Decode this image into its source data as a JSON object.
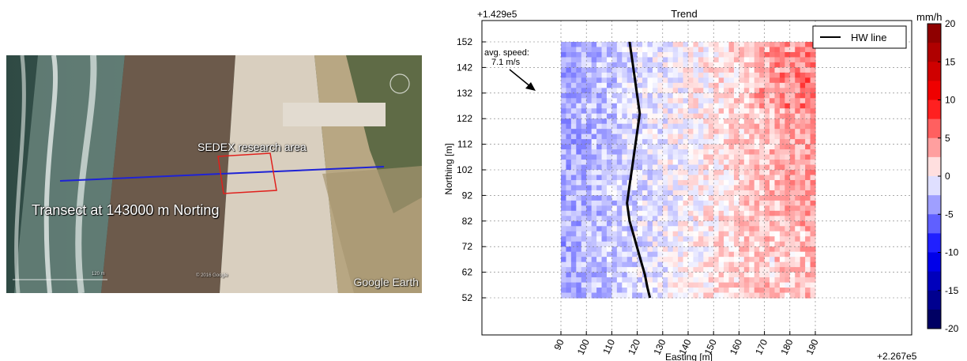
{
  "photo": {
    "area_label": "SEDEX research area",
    "transect_label": "Transect at 143000 m Norting",
    "watermark": "Google Earth",
    "scale_label": "120 m",
    "imagery_credit": "© 2016 Google",
    "colors": {
      "transect_line": "#1e22d6",
      "research_box": "#e0201c"
    }
  },
  "chart_data": {
    "type": "heatmap",
    "title": "Trend",
    "xlabel": "Easting [m]",
    "ylabel": "Northing [m]",
    "x_offset_label": "+2.267e5",
    "y_offset_label": "+1.429e5",
    "x_ticks": [
      90,
      100,
      110,
      120,
      130,
      140,
      150,
      160,
      170,
      180,
      190
    ],
    "y_ticks": [
      52,
      62,
      72,
      82,
      92,
      102,
      112,
      122,
      132,
      142,
      152
    ],
    "xlim": [
      90,
      190
    ],
    "ylim": [
      52,
      152
    ],
    "data_extent_x": [
      90,
      190
    ],
    "data_extent_y": [
      52,
      152
    ],
    "grid": true,
    "legend": {
      "placement": "top-right",
      "entries": [
        {
          "name": "HW line",
          "color": "#000000"
        }
      ]
    },
    "hw_line": {
      "x": [
        117,
        118,
        119,
        120,
        121,
        120,
        119,
        118,
        117,
        116,
        117,
        119,
        121,
        123,
        124,
        125
      ],
      "y": [
        152,
        145,
        138,
        131,
        124,
        117,
        110,
        103,
        96,
        89,
        82,
        75,
        68,
        61,
        56,
        52
      ]
    },
    "annotation": {
      "line1": "avg. speed:",
      "line2": "7.1 m/s"
    },
    "colorbar": {
      "unit": "mm/h",
      "range": [
        -20,
        20
      ],
      "ticks": [
        20,
        15,
        10,
        5,
        0,
        -5,
        -10,
        -15,
        -20
      ],
      "cmap": "seismic"
    }
  }
}
